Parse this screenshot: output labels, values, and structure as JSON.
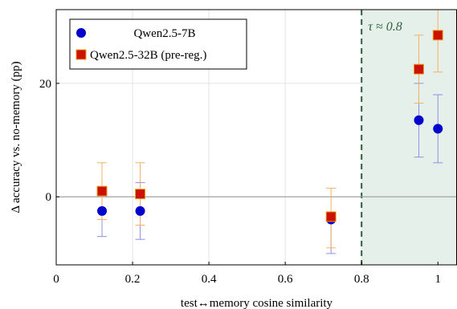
{
  "chart_data": {
    "type": "scatter",
    "xlabel": "test↔memory cosine similarity",
    "ylabel": "Δ accuracy vs. no-memory (pp)",
    "xlim": [
      0,
      1.05
    ],
    "ylim": [
      -12,
      33
    ],
    "xticks": [
      0,
      0.2,
      0.4,
      0.6,
      0.8,
      1
    ],
    "xtick_labels": [
      "0",
      "0.2",
      "0.4",
      "0.6",
      "0.8",
      "1"
    ],
    "yticks": [
      0,
      20
    ],
    "ytick_labels": [
      "0",
      "20"
    ],
    "grid": true,
    "legend_position": "top-left",
    "threshold": {
      "x": 0.8,
      "label": "τ ≈ 0.8",
      "shade_color": "#e6f0ea",
      "line_color": "#2f5f3f"
    },
    "series": [
      {
        "name": "Qwen2.5-7B",
        "marker": "circle",
        "color": "#0000cc",
        "error_color": "#8f8fe8",
        "points": [
          {
            "x": 0.12,
            "y": -2.5,
            "lo": -7,
            "hi": 1.5
          },
          {
            "x": 0.22,
            "y": -2.5,
            "lo": -7.5,
            "hi": 2.5
          },
          {
            "x": 0.72,
            "y": -4,
            "lo": -10,
            "hi": -3
          },
          {
            "x": 0.95,
            "y": 13.5,
            "lo": 7,
            "hi": 20
          },
          {
            "x": 1.0,
            "y": 12,
            "lo": 6,
            "hi": 18
          }
        ]
      },
      {
        "name": "Qwen2.5-32B (pre-reg.)",
        "marker": "square",
        "color": "#cc1100",
        "edge_color": "#e8a020",
        "error_color": "#f5b060",
        "points": [
          {
            "x": 0.12,
            "y": 1,
            "lo": -4,
            "hi": 6
          },
          {
            "x": 0.22,
            "y": 0.5,
            "lo": -5,
            "hi": 6
          },
          {
            "x": 0.72,
            "y": -3.5,
            "lo": -9,
            "hi": 1.5
          },
          {
            "x": 0.95,
            "y": 22.5,
            "lo": 16.5,
            "hi": 28.5
          },
          {
            "x": 1.0,
            "y": 28.5,
            "lo": 22,
            "hi": 33
          }
        ]
      }
    ]
  }
}
